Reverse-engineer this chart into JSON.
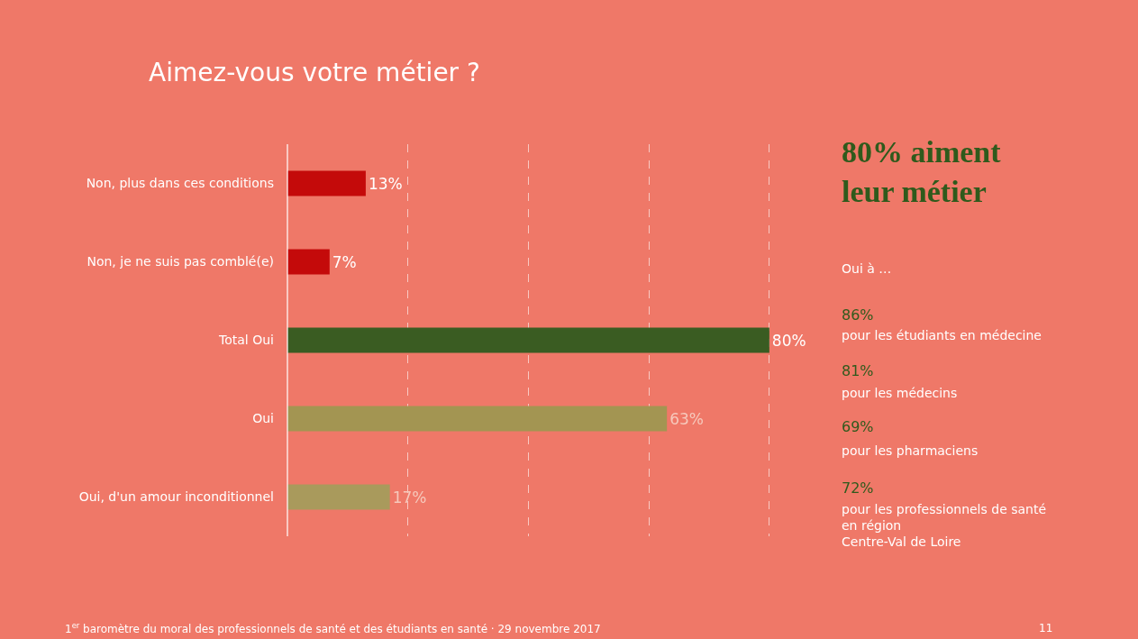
{
  "chart_data": {
    "type": "bar",
    "orientation": "horizontal",
    "title": "Aimez-vous votre métier ?",
    "categories": [
      "Non, plus dans ces conditions",
      "Non, je ne suis pas comblé(e)",
      "Total Oui",
      "Oui",
      "Oui, d'un amour inconditionnel"
    ],
    "values": [
      13,
      7,
      80,
      63,
      17
    ],
    "value_labels": [
      "13%",
      "7%",
      "80%",
      "63%",
      "17%"
    ],
    "colors": [
      "#c40a0a",
      "#c40a0a",
      "#3a5c22",
      "#a39552",
      "#a99a5c"
    ],
    "grid": "x",
    "legend": false,
    "annotations": [
      "80% aiment leur métier",
      "Oui à …",
      "86%",
      "pour les étudiants en médecine",
      "81%",
      "pour les médecins",
      "69%",
      "pour les pharmaciens",
      "72%",
      "pour les professionnels de santé en région Centre-Val de Loire",
      "1$^{er}$ baromètre du moral des professionnels de santé et des étudiants en santé · 29 novembre 2017",
      "11"
    ]
  }
}
